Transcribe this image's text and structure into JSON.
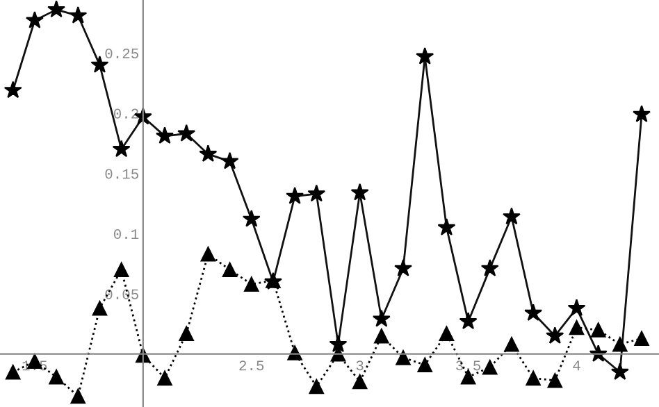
{
  "chart_data": {
    "type": "line",
    "x": [
      1.4,
      1.5,
      1.6,
      1.7,
      1.8,
      1.9,
      2.0,
      2.1,
      2.2,
      2.3,
      2.4,
      2.5,
      2.6,
      2.7,
      2.8,
      2.9,
      3.0,
      3.1,
      3.2,
      3.3,
      3.4,
      3.5,
      3.6,
      3.7,
      3.8,
      3.9,
      4.0,
      4.1,
      4.2,
      4.3
    ],
    "series": [
      {
        "color": "#111111",
        "marker": "star",
        "line_style": "solid",
        "values": [
          0.219,
          0.277,
          0.286,
          0.281,
          0.24,
          0.17,
          0.197,
          0.181,
          0.183,
          0.166,
          0.16,
          0.112,
          0.06,
          0.131,
          0.133,
          0.008,
          0.134,
          0.029,
          0.071,
          0.247,
          0.105,
          0.027,
          0.071,
          0.114,
          0.034,
          0.015,
          0.038,
          0.0,
          -0.015,
          0.199
        ]
      },
      {
        "color": "#000000",
        "marker": "triangle",
        "line_style": "dotted",
        "values": [
          -0.015,
          -0.006,
          -0.019,
          -0.035,
          0.038,
          0.07,
          -0.001,
          -0.02,
          0.017,
          0.083,
          0.07,
          0.058,
          0.061,
          0.001,
          -0.027,
          0.0,
          -0.023,
          0.015,
          -0.003,
          -0.009,
          0.017,
          -0.019,
          -0.011,
          0.008,
          -0.02,
          -0.022,
          0.022,
          0.02,
          0.008,
          0.013
        ]
      }
    ],
    "xlim": [
      1.34,
      4.38
    ],
    "ylim": [
      -0.044,
      0.294
    ],
    "xticks": [
      1.5,
      {
        "value": 2,
        "label": null
      },
      2.5,
      3,
      3.5,
      4
    ],
    "yticks": [
      0.05,
      0.1,
      0.15,
      0.2,
      0.25
    ],
    "grid": false,
    "legend": false
  }
}
